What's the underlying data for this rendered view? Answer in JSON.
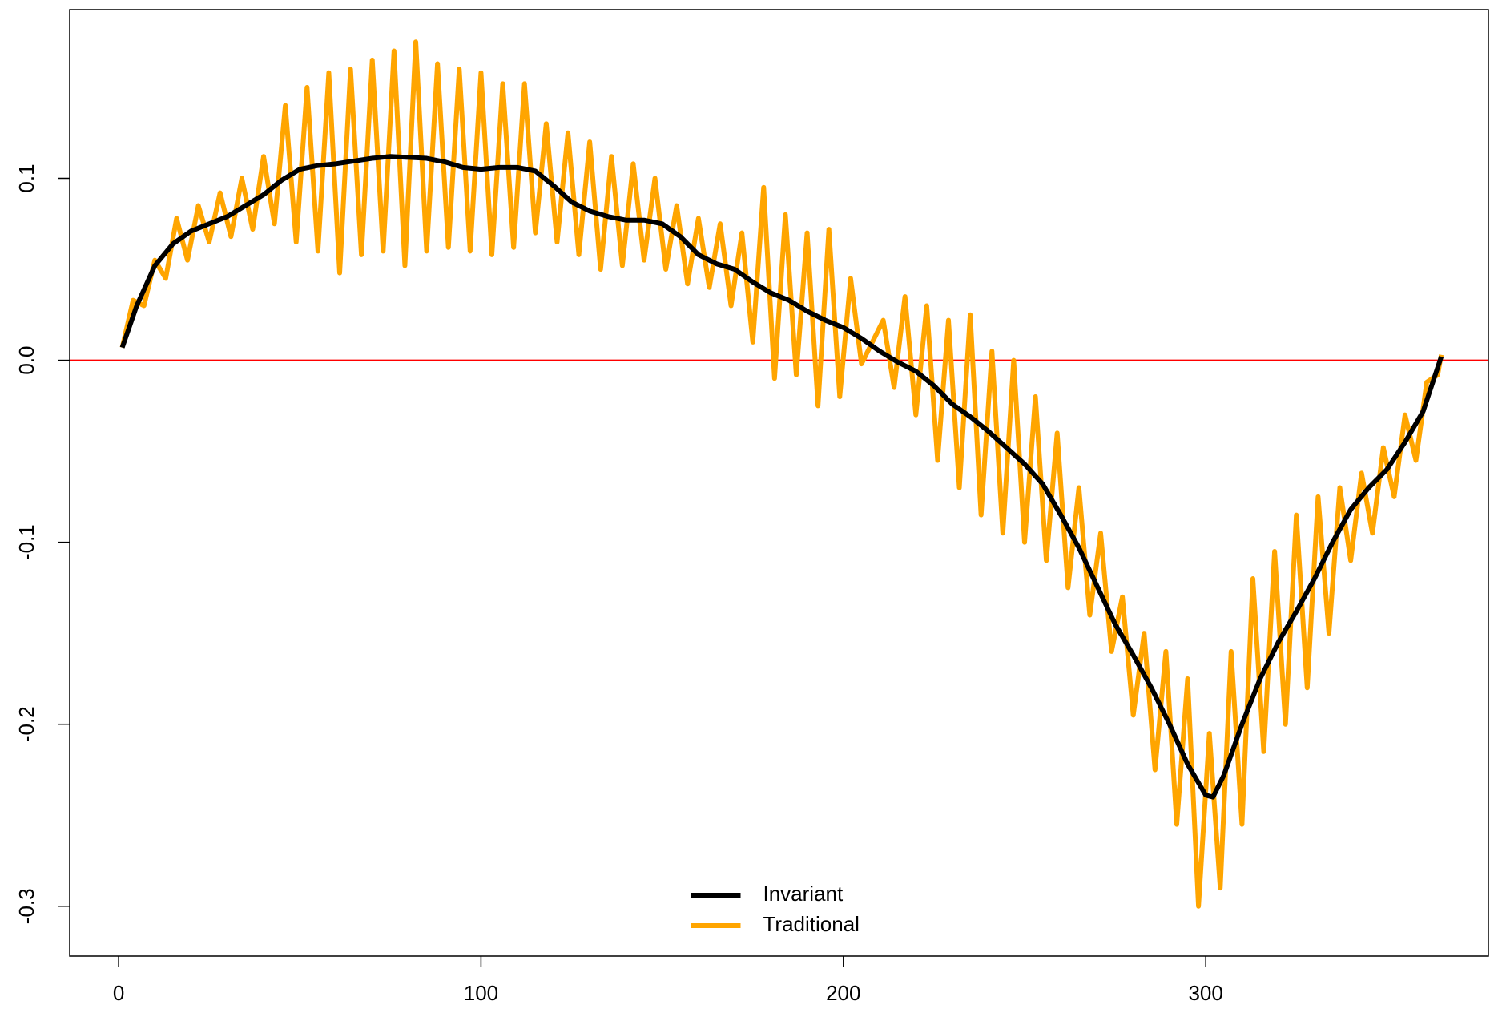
{
  "chart_data": {
    "type": "line",
    "xlim": [
      -13.5,
      378
    ],
    "ylim": [
      -0.3274,
      0.1927
    ],
    "xticks": [
      0,
      100,
      200,
      300
    ],
    "yticks": [
      -0.3,
      -0.2,
      -0.1,
      {
        "value": 0,
        "label": "0.0"
      },
      0.1
    ],
    "legend": "bottom",
    "reference_line": {
      "value": 0,
      "color": "#ff0000"
    },
    "series": [
      {
        "name": "Traditional",
        "color": "#ffa500",
        "x": [
          1,
          4,
          7,
          10,
          13,
          16,
          19,
          22,
          25,
          28,
          31,
          34,
          37,
          40,
          43,
          46,
          49,
          52,
          55,
          58,
          61,
          64,
          67,
          70,
          73,
          76,
          79,
          82,
          85,
          88,
          91,
          94,
          97,
          100,
          103,
          106,
          109,
          112,
          115,
          118,
          121,
          124,
          127,
          130,
          133,
          136,
          139,
          142,
          145,
          148,
          151,
          154,
          157,
          160,
          163,
          166,
          169,
          172,
          175,
          178,
          181,
          184,
          187,
          190,
          193,
          196,
          199,
          202,
          205,
          208,
          211,
          214,
          217,
          220,
          223,
          226,
          229,
          232,
          235,
          238,
          241,
          244,
          247,
          250,
          253,
          256,
          259,
          262,
          265,
          268,
          271,
          274,
          277,
          280,
          283,
          286,
          289,
          292,
          295,
          298,
          301,
          304,
          307,
          310,
          313,
          316,
          319,
          322,
          325,
          328,
          331,
          334,
          337,
          340,
          343,
          346,
          349,
          352,
          355,
          358,
          361,
          364,
          365
        ],
        "values": [
          0.007,
          0.033,
          0.03,
          0.055,
          0.045,
          0.078,
          0.055,
          0.085,
          0.065,
          0.092,
          0.068,
          0.1,
          0.072,
          0.112,
          0.075,
          0.14,
          0.065,
          0.15,
          0.06,
          0.158,
          0.048,
          0.16,
          0.058,
          0.165,
          0.06,
          0.17,
          0.052,
          0.175,
          0.06,
          0.163,
          0.062,
          0.16,
          0.06,
          0.158,
          0.058,
          0.152,
          0.062,
          0.152,
          0.07,
          0.13,
          0.065,
          0.125,
          0.058,
          0.12,
          0.05,
          0.112,
          0.052,
          0.108,
          0.055,
          0.1,
          0.05,
          0.085,
          0.042,
          0.078,
          0.04,
          0.075,
          0.03,
          0.07,
          0.01,
          0.095,
          -0.01,
          0.08,
          -0.008,
          0.07,
          -0.025,
          0.072,
          -0.02,
          0.045,
          -0.002,
          0.01,
          0.022,
          -0.015,
          0.035,
          -0.03,
          0.03,
          -0.055,
          0.022,
          -0.07,
          0.025,
          -0.085,
          0.005,
          -0.095,
          0,
          -0.1,
          -0.02,
          -0.11,
          -0.04,
          -0.125,
          -0.07,
          -0.14,
          -0.095,
          -0.16,
          -0.13,
          -0.195,
          -0.15,
          -0.225,
          -0.16,
          -0.255,
          -0.175,
          -0.3,
          -0.205,
          -0.29,
          -0.16,
          -0.255,
          -0.12,
          -0.215,
          -0.105,
          -0.2,
          -0.085,
          -0.18,
          -0.075,
          -0.15,
          -0.07,
          -0.11,
          -0.062,
          -0.095,
          -0.048,
          -0.075,
          -0.03,
          -0.055,
          -0.012,
          -0.008,
          0.003
        ]
      },
      {
        "name": "Invariant",
        "color": "#000000",
        "x": [
          1,
          5,
          10,
          15,
          20,
          25,
          30,
          35,
          40,
          45,
          50,
          55,
          60,
          70,
          75,
          85,
          90,
          95,
          100,
          105,
          110,
          115,
          120,
          125,
          130,
          135,
          140,
          145,
          150,
          155,
          160,
          165,
          170,
          175,
          180,
          185,
          190,
          195,
          200,
          205,
          210,
          215,
          220,
          225,
          230,
          235,
          240,
          245,
          250,
          255,
          260,
          265,
          270,
          275,
          280,
          285,
          290,
          295,
          300,
          302,
          305,
          310,
          315,
          320,
          325,
          330,
          335,
          340,
          345,
          350,
          355,
          360,
          365
        ],
        "values": [
          0.007,
          0.03,
          0.052,
          0.064,
          0.071,
          0.075,
          0.079,
          0.085,
          0.091,
          0.099,
          0.105,
          0.107,
          0.108,
          0.111,
          0.112,
          0.111,
          0.109,
          0.106,
          0.105,
          0.106,
          0.106,
          0.104,
          0.096,
          0.087,
          0.082,
          0.079,
          0.077,
          0.077,
          0.075,
          0.068,
          0.058,
          0.053,
          0.05,
          0.043,
          0.037,
          0.033,
          0.027,
          0.022,
          0.018,
          0.012,
          0.005,
          -0.001,
          -0.006,
          -0.014,
          -0.024,
          -0.031,
          -0.039,
          -0.048,
          -0.057,
          -0.068,
          -0.085,
          -0.103,
          -0.124,
          -0.145,
          -0.162,
          -0.18,
          -0.2,
          -0.222,
          -0.239,
          -0.24,
          -0.228,
          -0.2,
          -0.175,
          -0.155,
          -0.138,
          -0.12,
          -0.1,
          -0.082,
          -0.07,
          -0.06,
          -0.045,
          -0.028,
          0.002
        ]
      }
    ]
  }
}
